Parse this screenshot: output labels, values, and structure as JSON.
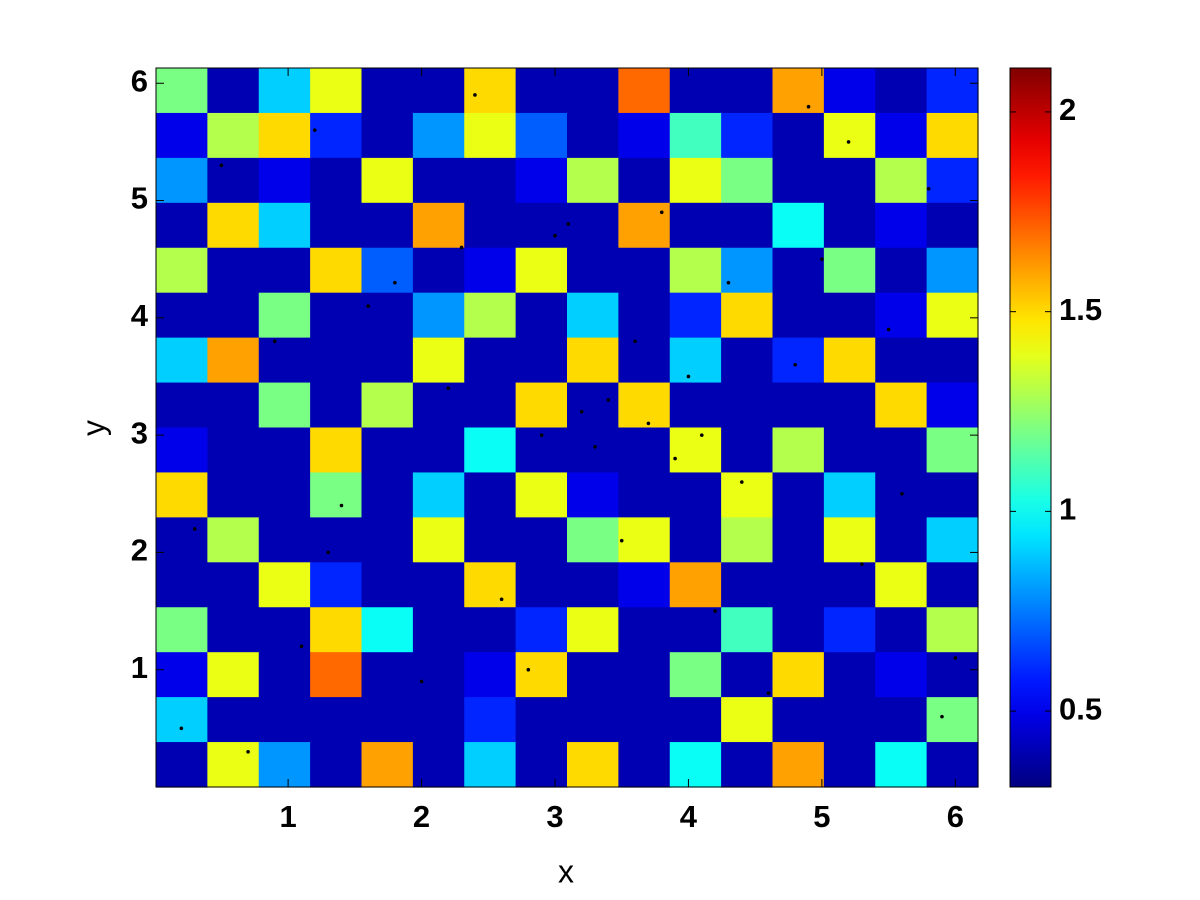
{
  "chart_data": {
    "type": "heatmap",
    "x_label": "x",
    "y_label": "y",
    "colormap": "jet",
    "xlim": [
      0.01,
      6.17
    ],
    "ylim": [
      0.0,
      6.13
    ],
    "xticks": [
      1,
      2,
      3,
      4,
      5,
      6
    ],
    "yticks": [
      1,
      2,
      3,
      4,
      5,
      6
    ],
    "clim": [
      0.31,
      2.11
    ],
    "cticks": [
      0.5,
      1,
      1.5,
      2
    ],
    "z": [
      [
        1.2,
        0.4,
        0.9,
        1.4,
        0.4,
        0.4,
        1.5,
        0.4,
        0.4,
        1.7,
        0.4,
        0.4,
        1.6,
        0.5,
        0.4,
        0.6
      ],
      [
        0.5,
        1.3,
        1.5,
        0.6,
        0.4,
        0.8,
        1.4,
        0.7,
        0.4,
        0.5,
        1.1,
        0.6,
        0.4,
        1.4,
        0.5,
        1.5
      ],
      [
        0.8,
        0.4,
        0.5,
        0.4,
        1.4,
        0.4,
        0.4,
        0.5,
        1.3,
        0.4,
        1.4,
        1.2,
        0.4,
        0.4,
        1.3,
        0.6
      ],
      [
        0.4,
        1.5,
        0.9,
        0.4,
        0.4,
        1.6,
        0.4,
        0.4,
        0.4,
        1.6,
        0.4,
        0.4,
        1.0,
        0.4,
        0.5,
        0.4
      ],
      [
        1.3,
        0.4,
        0.4,
        1.5,
        0.7,
        0.4,
        0.5,
        1.4,
        0.4,
        0.4,
        1.3,
        0.8,
        0.4,
        1.2,
        0.4,
        0.8
      ],
      [
        0.4,
        0.4,
        1.2,
        0.4,
        0.4,
        0.8,
        1.3,
        0.4,
        0.9,
        0.4,
        0.6,
        1.5,
        0.4,
        0.4,
        0.5,
        1.4
      ],
      [
        0.9,
        1.6,
        0.4,
        0.4,
        0.4,
        1.4,
        0.4,
        0.4,
        1.5,
        0.4,
        0.9,
        0.4,
        0.6,
        1.5,
        0.4,
        0.4
      ],
      [
        0.4,
        0.4,
        1.2,
        0.4,
        1.3,
        0.4,
        0.4,
        1.5,
        0.4,
        1.5,
        0.4,
        0.4,
        0.4,
        0.4,
        1.5,
        0.5
      ],
      [
        0.5,
        0.4,
        0.4,
        1.5,
        0.4,
        0.4,
        1.0,
        0.4,
        0.4,
        0.4,
        1.4,
        0.4,
        1.3,
        0.4,
        0.4,
        1.2
      ],
      [
        1.5,
        0.4,
        0.4,
        1.2,
        0.4,
        0.9,
        0.4,
        1.4,
        0.5,
        0.4,
        0.4,
        1.4,
        0.4,
        0.9,
        0.4,
        0.4
      ],
      [
        0.4,
        1.3,
        0.4,
        0.4,
        0.4,
        1.4,
        0.4,
        0.4,
        1.2,
        1.4,
        0.4,
        1.3,
        0.4,
        1.4,
        0.4,
        0.9
      ],
      [
        0.4,
        0.4,
        1.4,
        0.6,
        0.4,
        0.4,
        1.5,
        0.4,
        0.4,
        0.5,
        1.6,
        0.4,
        0.4,
        0.4,
        1.4,
        0.4
      ],
      [
        1.2,
        0.4,
        0.4,
        1.5,
        1.0,
        0.4,
        0.4,
        0.6,
        1.4,
        0.4,
        0.4,
        1.1,
        0.4,
        0.6,
        0.4,
        1.3
      ],
      [
        0.5,
        1.4,
        0.4,
        1.7,
        0.4,
        0.4,
        0.5,
        1.5,
        0.4,
        0.4,
        1.2,
        0.4,
        1.5,
        0.4,
        0.5,
        0.4
      ],
      [
        0.9,
        0.4,
        0.4,
        0.4,
        0.4,
        0.4,
        0.6,
        0.4,
        0.4,
        0.4,
        0.4,
        1.4,
        0.4,
        0.4,
        0.4,
        1.2
      ],
      [
        0.4,
        1.4,
        0.8,
        0.4,
        1.6,
        0.4,
        0.9,
        0.4,
        1.5,
        0.4,
        1.0,
        0.4,
        1.6,
        0.4,
        1.0,
        0.4
      ]
    ],
    "points": {
      "color": "#000000",
      "x": [
        0.5,
        1.2,
        1.6,
        2.3,
        2.9,
        3.1,
        3.4,
        3.9,
        4.3,
        4.8,
        5.2,
        5.8,
        0.3,
        0.9,
        1.4,
        2.0,
        2.6,
        3.3,
        3.7,
        4.2,
        4.6,
        5.3,
        5.9,
        0.7,
        1.1,
        1.8,
        2.4,
        3.0,
        3.5,
        4.0,
        4.4,
        5.0,
        5.5,
        6.0,
        0.2,
        1.3,
        2.2,
        2.8,
        3.8,
        4.9,
        5.6,
        3.2,
        3.6,
        4.1
      ],
      "y": [
        5.3,
        5.6,
        4.1,
        4.6,
        3.0,
        4.8,
        3.3,
        2.8,
        4.3,
        3.6,
        5.5,
        5.1,
        2.2,
        3.8,
        2.4,
        0.9,
        1.6,
        2.9,
        3.1,
        1.5,
        0.8,
        1.9,
        0.6,
        0.3,
        1.2,
        4.3,
        5.9,
        4.7,
        2.1,
        3.5,
        2.6,
        4.5,
        3.9,
        1.1,
        0.5,
        2.0,
        3.4,
        1.0,
        4.9,
        5.8,
        2.5,
        3.2,
        3.8,
        3.0
      ]
    }
  }
}
